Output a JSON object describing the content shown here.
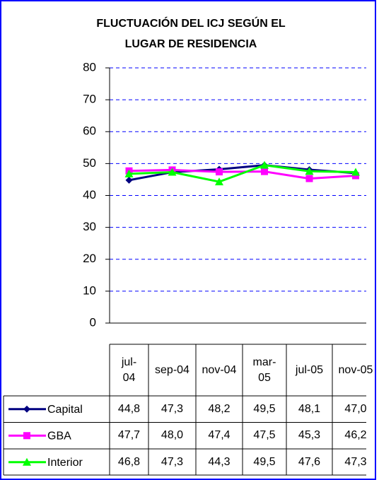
{
  "chart_data": {
    "type": "line",
    "title": "FLUCTUACIÓN DEL ICJ SEGÚN EL LUGAR DE RESIDENCIA",
    "categories": [
      "jul-04",
      "sep-04",
      "nov-04",
      "mar-05",
      "jul-05",
      "nov-05"
    ],
    "series": [
      {
        "name": "Capital",
        "color": "#000080",
        "marker": "diamond",
        "values": [
          44.8,
          47.3,
          48.2,
          49.5,
          48.1,
          47.0
        ],
        "value_labels": [
          "44,8",
          "47,3",
          "48,2",
          "49,5",
          "48,1",
          "47,0"
        ]
      },
      {
        "name": "GBA",
        "color": "#ff00ff",
        "marker": "square",
        "values": [
          47.7,
          48.0,
          47.4,
          47.5,
          45.3,
          46.2
        ],
        "value_labels": [
          "47,7",
          "48,0",
          "47,4",
          "47,5",
          "45,3",
          "46,2"
        ]
      },
      {
        "name": "Interior",
        "color": "#00ff00",
        "marker": "triangle",
        "values": [
          46.8,
          47.3,
          44.3,
          49.5,
          47.6,
          47.3
        ],
        "value_labels": [
          "46,8",
          "47,3",
          "44,3",
          "49,5",
          "47,6",
          "47,3"
        ]
      }
    ],
    "ylim": [
      0,
      80
    ],
    "yticks": [
      0,
      10,
      20,
      30,
      40,
      50,
      60,
      70,
      80
    ],
    "grid": true
  }
}
